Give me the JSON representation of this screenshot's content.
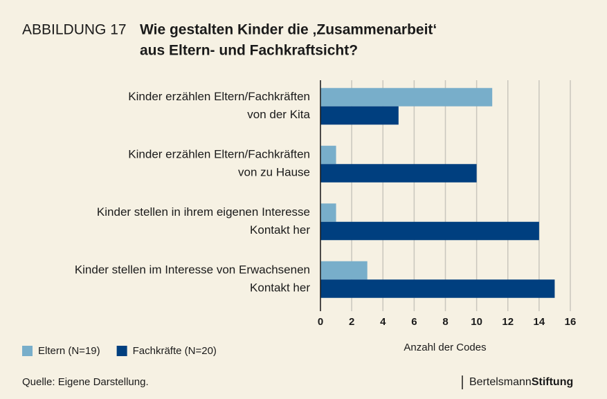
{
  "chart_data": {
    "type": "bar",
    "orientation": "horizontal",
    "figure_label": "ABBILDUNG 17",
    "title": [
      "Wie gestalten Kinder die ‚Zusammenarbeit‘",
      "aus Eltern- und Fachkraftsicht?"
    ],
    "categories": [
      [
        "Kinder erzählen Eltern/Fachkräften",
        "von der Kita"
      ],
      [
        "Kinder erzählen Eltern/Fachkräften",
        "von zu Hause"
      ],
      [
        "Kinder stellen in ihrem eigenen Interesse",
        "Kontakt her"
      ],
      [
        "Kinder stellen im Interesse von Erwachsenen",
        "Kontakt her"
      ]
    ],
    "series": [
      {
        "name": "Eltern (N=19)",
        "color": "#78aeca",
        "values": [
          11,
          1,
          1,
          3
        ]
      },
      {
        "name": "Fachkräfte (N=20)",
        "color": "#003f7f",
        "values": [
          5,
          10,
          14,
          15
        ]
      }
    ],
    "xlabel": "Anzahl der Codes",
    "xlim": [
      0,
      16
    ],
    "xticks": [
      0,
      2,
      4,
      6,
      8,
      10,
      12,
      14,
      16
    ],
    "grid": true,
    "legend": "bottom-left",
    "source": "Quelle: Eigene Darstellung.",
    "brand": [
      "Bertelsmann",
      "Stiftung"
    ]
  }
}
